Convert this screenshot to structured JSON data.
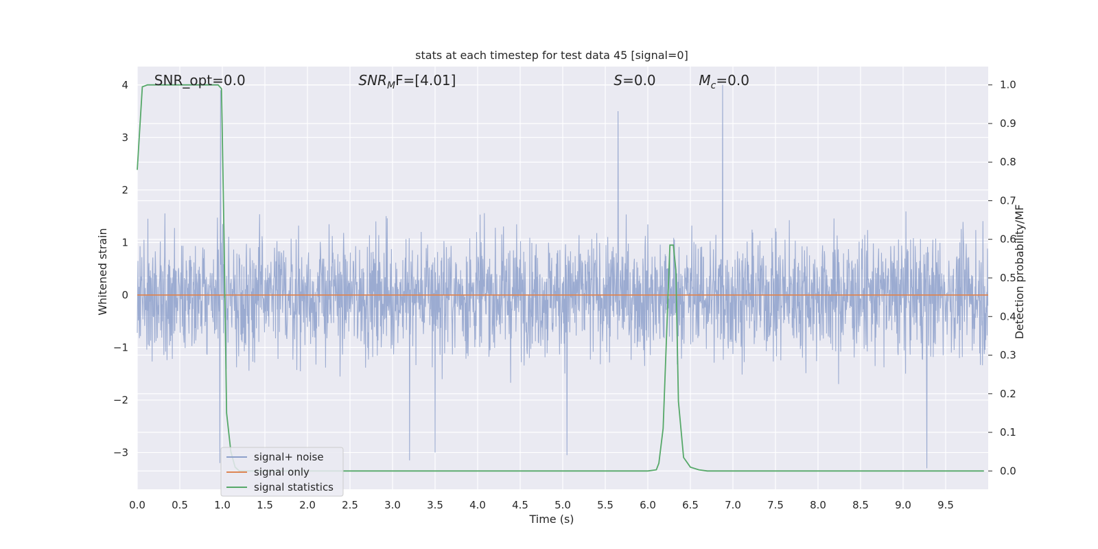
{
  "chart_data": {
    "type": "line",
    "title": "stats at each timestep for test data 45 [signal=0]",
    "xlabel": "Time (s)",
    "ylabel_left": "Whitened strain",
    "ylabel_right": "Detection probability/MF",
    "xlim": [
      0.0,
      10.0
    ],
    "ylim_left": [
      -3.7,
      4.35
    ],
    "ylim_right": [
      -0.0475,
      1.0475
    ],
    "x_ticks": [
      "0.0",
      "0.5",
      "1.0",
      "1.5",
      "2.0",
      "2.5",
      "3.0",
      "3.5",
      "4.0",
      "4.5",
      "5.0",
      "5.5",
      "6.0",
      "6.5",
      "7.0",
      "7.5",
      "8.0",
      "8.5",
      "9.0",
      "9.5"
    ],
    "y_left_ticks": [
      {
        "value": 4,
        "label": "4"
      },
      {
        "value": 3,
        "label": "3"
      },
      {
        "value": 2,
        "label": "2"
      },
      {
        "value": 1,
        "label": "1"
      },
      {
        "value": 0,
        "label": "0"
      },
      {
        "value": -1,
        "label": "−1"
      },
      {
        "value": -2,
        "label": "−2"
      },
      {
        "value": -3,
        "label": "−3"
      }
    ],
    "y_right_ticks": [
      "0.0",
      "0.1",
      "0.2",
      "0.3",
      "0.4",
      "0.5",
      "0.6",
      "0.7",
      "0.8",
      "0.9",
      "1.0"
    ],
    "grid": true,
    "legend_position": "lower-left",
    "annotations": [
      {
        "x": 0.2,
        "text_plain": "SNR_opt=0.0"
      },
      {
        "x": 2.6,
        "math": "SNR",
        "sub": "M",
        "tail": "F=[4.01]"
      },
      {
        "x": 5.6,
        "math": "S",
        "sub": "",
        "tail": "=0.0"
      },
      {
        "x": 6.6,
        "math": "M",
        "sub": "c",
        "tail": "=0.0"
      }
    ],
    "noise_series": {
      "name": "signal+ noise",
      "color": "#8da0cb",
      "description": "whitened strain noise, amplitude mostly within about ±2",
      "spikes": [
        {
          "x": 0.98,
          "y": 3.9
        },
        {
          "x": 5.65,
          "y": 3.5
        },
        {
          "x": 6.88,
          "y": 4.0
        },
        {
          "x": 9.28,
          "y": -3.3
        },
        {
          "x": 0.97,
          "y": -3.2
        },
        {
          "x": 3.2,
          "y": -3.15
        },
        {
          "x": 3.5,
          "y": -3.0
        },
        {
          "x": 5.05,
          "y": -3.05
        }
      ]
    },
    "series": [
      {
        "name": "signal only",
        "color": "#dd8452",
        "x": [
          0.0,
          10.0
        ],
        "y": [
          0.0,
          0.0
        ]
      },
      {
        "name": "signal statistics",
        "color": "#55a868",
        "axis": "right",
        "x": [
          0.0,
          0.06,
          0.12,
          0.2,
          0.5,
          0.8,
          0.95,
          0.99,
          1.02,
          1.05,
          1.1,
          1.15,
          1.2,
          1.3,
          2.0,
          3.0,
          4.0,
          5.0,
          6.0,
          6.1,
          6.13,
          6.18,
          6.22,
          6.26,
          6.3,
          6.33,
          6.36,
          6.42,
          6.5,
          6.6,
          6.7,
          7.0,
          8.0,
          9.0,
          9.95
        ],
        "y": [
          0.78,
          0.995,
          1.0,
          1.0,
          1.0,
          1.0,
          1.0,
          0.99,
          0.6,
          0.15,
          0.05,
          0.01,
          0.0,
          0.0,
          0.0,
          0.0,
          0.0,
          0.0,
          0.0,
          0.003,
          0.02,
          0.11,
          0.35,
          0.585,
          0.585,
          0.52,
          0.18,
          0.035,
          0.01,
          0.003,
          0.0,
          0.0,
          0.0,
          0.0,
          0.0
        ]
      }
    ],
    "legend": [
      "signal+ noise",
      "signal only",
      "signal statistics"
    ]
  }
}
